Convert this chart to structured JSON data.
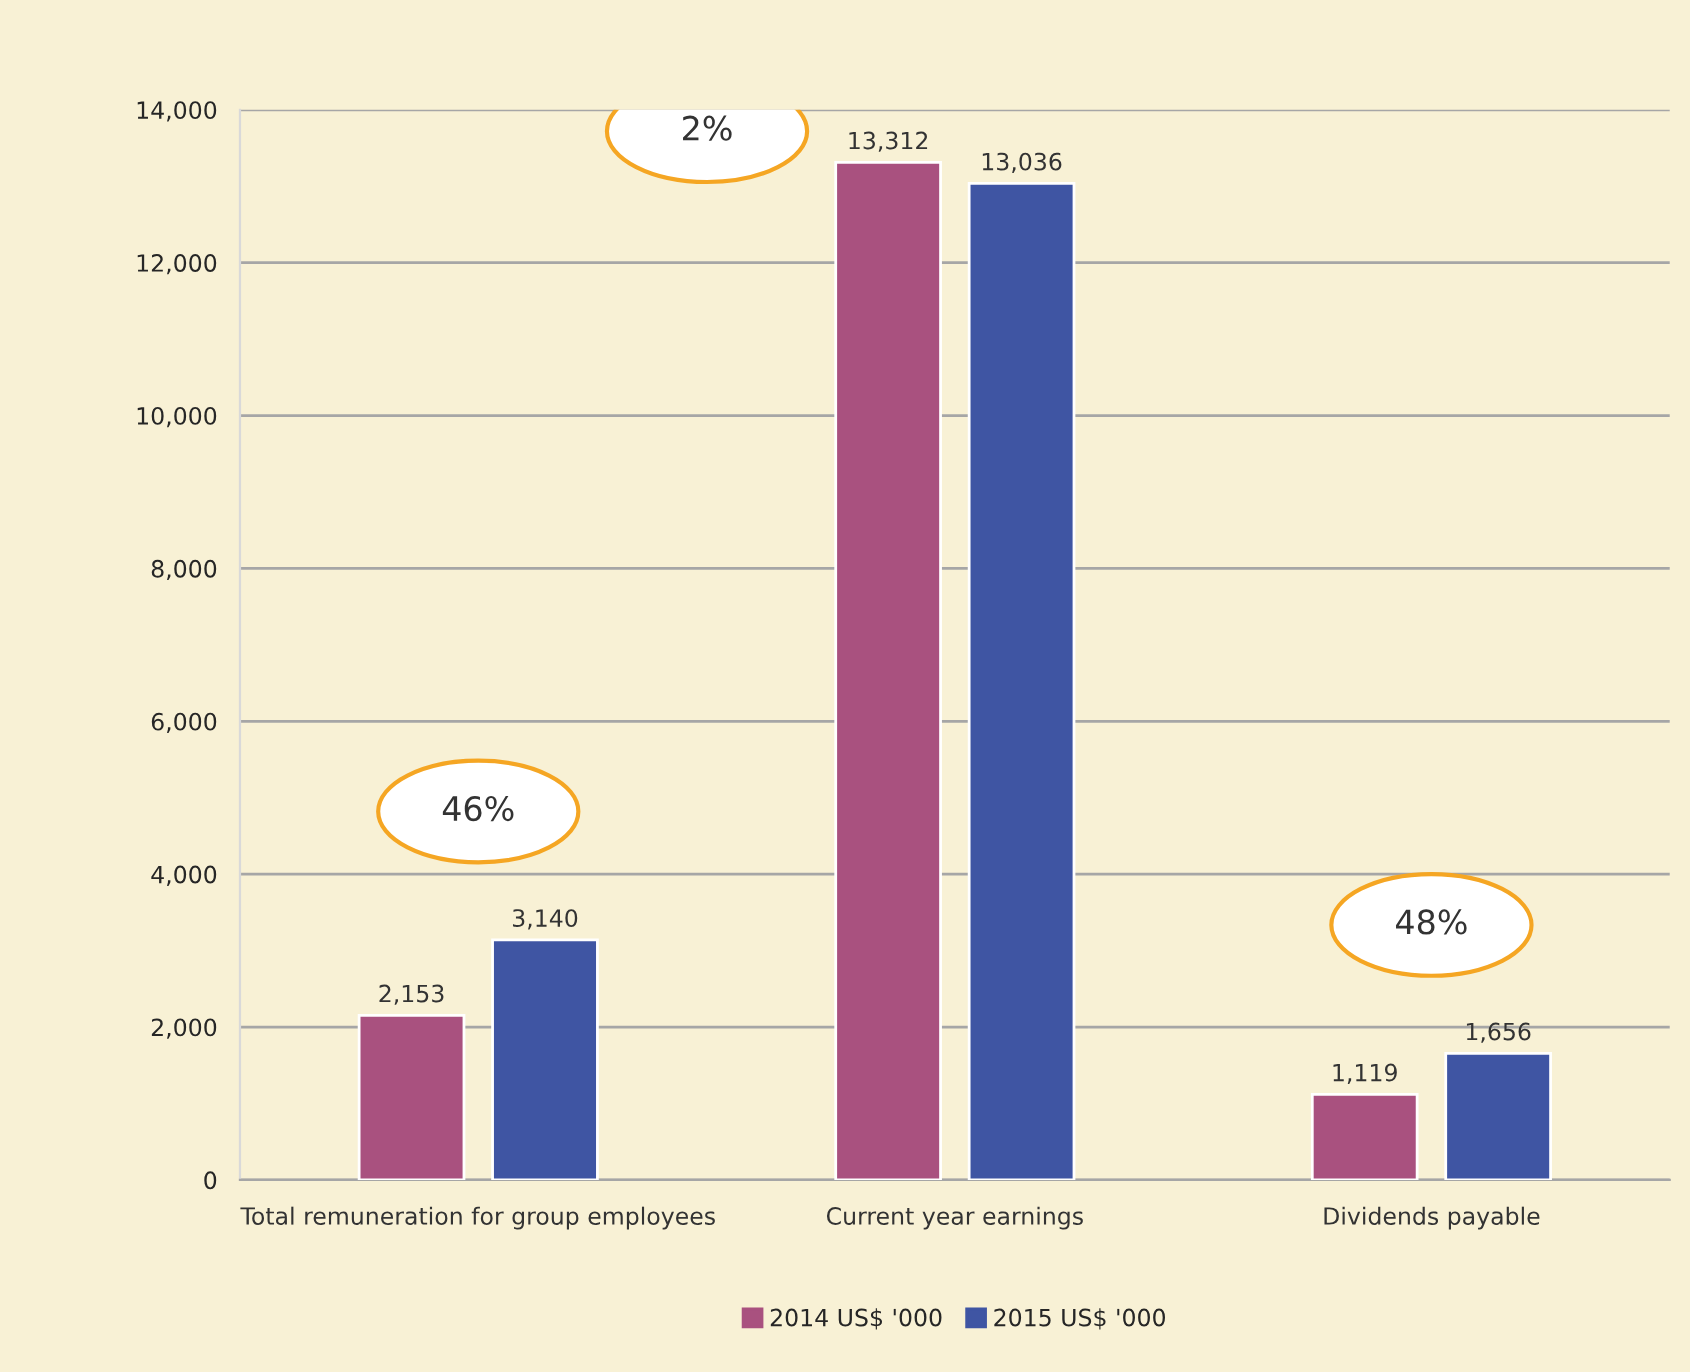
{
  "chart_data": {
    "type": "bar",
    "categories": [
      "Total remuneration for group employees",
      "Current year earnings",
      "Dividends payable"
    ],
    "series": [
      {
        "name": "2014 US$ '000",
        "color": "#a9517f",
        "values": [
          2153,
          13312,
          1119
        ],
        "value_labels": [
          "2,153",
          "13,312",
          "1,119"
        ]
      },
      {
        "name": "2015 US$ '000",
        "color": "#3f55a3",
        "values": [
          3140,
          13036,
          1656
        ],
        "value_labels": [
          "3,140",
          "13,036",
          "1,656"
        ]
      }
    ],
    "ylim": [
      0,
      14000
    ],
    "yticks": [
      0,
      {
        "value": 2000,
        "label": "2,000"
      },
      {
        "value": 4000,
        "label": "4,000"
      },
      {
        "value": 6000,
        "label": "6,000"
      },
      {
        "value": 8000,
        "label": "8,000"
      },
      {
        "value": 10000,
        "label": "10,000"
      },
      {
        "value": 12000,
        "label": "12,000"
      },
      {
        "value": 14000,
        "label": "14,000"
      }
    ],
    "grid": "y",
    "legend": "bottom",
    "annotations": [
      "46%",
      "2%",
      "48%"
    ]
  }
}
